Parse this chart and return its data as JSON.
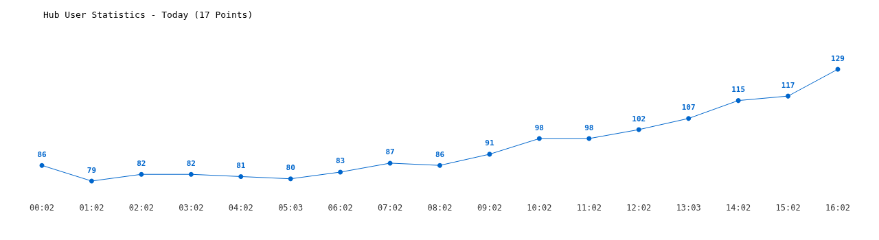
{
  "chart_data": {
    "type": "line",
    "title": "Hub User Statistics - Today (17 Points)",
    "categories": [
      "00:02",
      "01:02",
      "02:02",
      "03:02",
      "04:02",
      "05:03",
      "06:02",
      "07:02",
      "08:02",
      "09:02",
      "10:02",
      "11:02",
      "12:02",
      "13:03",
      "14:02",
      "15:02",
      "16:02"
    ],
    "series": [
      {
        "color": "#0066cc",
        "values": [
          86,
          79,
          82,
          82,
          81,
          80,
          83,
          87,
          86,
          91,
          98,
          98,
          102,
          107,
          115,
          117,
          129
        ]
      }
    ],
    "data_labels": true,
    "marker": "circle",
    "line_style": "solid"
  }
}
